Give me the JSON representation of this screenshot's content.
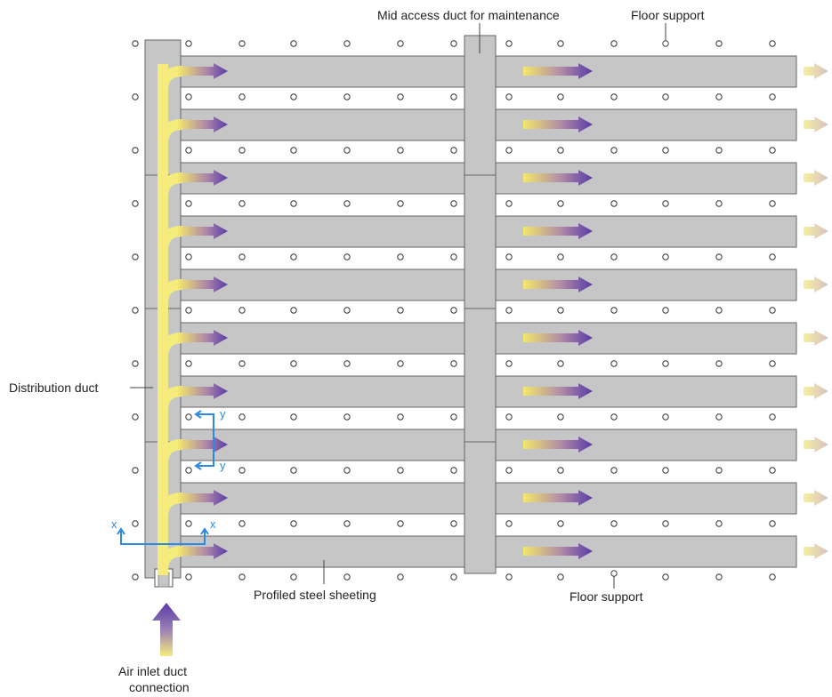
{
  "labels": {
    "mid_access_duct": "Mid access duct for maintenance",
    "floor_support_top": "Floor support",
    "distribution_duct": "Distribution duct",
    "profiled_steel_sheeting": "Profiled steel sheeting",
    "floor_support_bottom": "Floor support",
    "air_inlet_line1": "Air inlet duct",
    "air_inlet_line2": "connection"
  },
  "axis_markers": {
    "y_top": "y",
    "y_bottom": "y",
    "x_left": "x",
    "x_right": "x"
  },
  "colors": {
    "panel_fill": "#c6c6c6",
    "panel_stroke": "#666666",
    "arrow_start": "#f3e86a",
    "arrow_end": "#5a3aa8",
    "axis_marker": "#2a8be0",
    "duct_flow": "#f6ec7e"
  }
}
